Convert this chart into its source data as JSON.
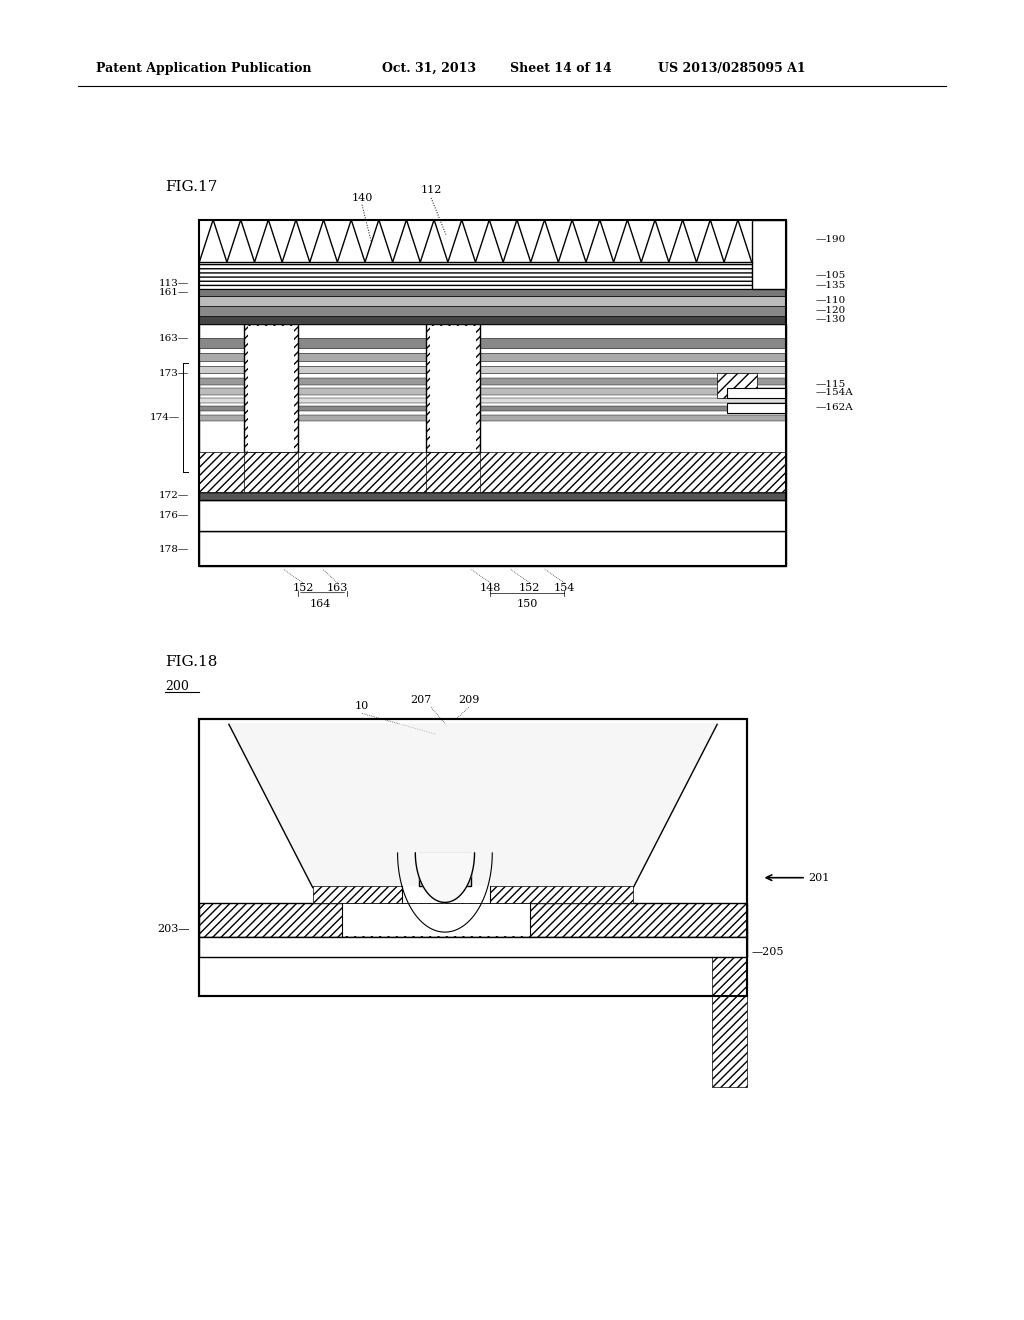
{
  "bg_color": "#ffffff",
  "header_text": "Patent Application Publication",
  "header_date": "Oct. 31, 2013",
  "header_sheet": "Sheet 14 of 14",
  "header_patent": "US 2013/0285095 A1"
}
